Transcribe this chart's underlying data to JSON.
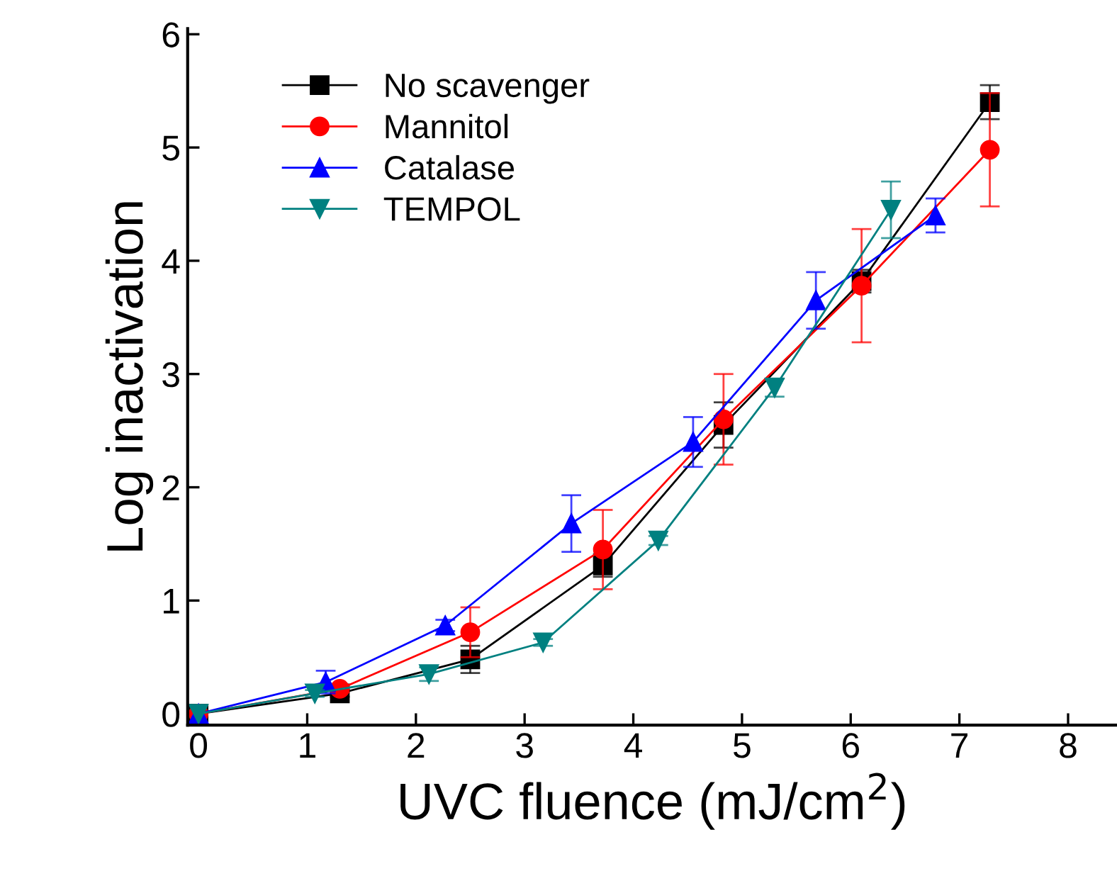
{
  "chart_data": {
    "type": "line",
    "xlabel": "UVC fluence (mJ/cm$^{2}$)",
    "ylabel": "Log inactivation",
    "xlim": [
      -0.1,
      8.45
    ],
    "ylim": [
      -0.1,
      6.05
    ],
    "xticks": [
      0,
      1,
      2,
      3,
      4,
      5,
      6,
      7,
      8
    ],
    "yticks": [
      0,
      1,
      2,
      3,
      4,
      5,
      6
    ],
    "grid": false,
    "legend": "top left",
    "line_style": "solid",
    "series": [
      {
        "name": "No scavenger",
        "color": "#000000",
        "marker": "square",
        "x": [
          0,
          1.3,
          2.5,
          3.72,
          4.83,
          6.1,
          7.28
        ],
        "values": [
          0,
          0.18,
          0.48,
          1.31,
          2.55,
          3.82,
          5.4
        ],
        "errors": [
          null,
          0.03,
          0.12,
          0.1,
          0.2,
          0.1,
          0.15
        ]
      },
      {
        "name": "Mannitol",
        "color": "#ff0000",
        "marker": "circle",
        "x": [
          0,
          1.3,
          2.5,
          3.72,
          4.83,
          6.1,
          7.28
        ],
        "values": [
          0,
          0.22,
          0.72,
          1.45,
          2.6,
          3.78,
          4.98
        ],
        "errors": [
          null,
          0.03,
          0.22,
          0.35,
          0.4,
          0.5,
          0.5
        ]
      },
      {
        "name": "Catalase",
        "color": "#0000ff",
        "marker": "triangle",
        "x": [
          0,
          1.17,
          2.27,
          3.43,
          4.55,
          5.68,
          6.78
        ],
        "values": [
          0,
          0.28,
          0.78,
          1.68,
          2.4,
          3.65,
          4.4
        ],
        "errors": [
          null,
          0.1,
          0.05,
          0.25,
          0.22,
          0.25,
          0.15
        ]
      },
      {
        "name": "TEMPOL",
        "color": "#008080",
        "marker": "triangle_down",
        "x": [
          0,
          1.07,
          2.12,
          3.17,
          4.23,
          5.3,
          6.37
        ],
        "values": [
          0,
          0.18,
          0.35,
          0.63,
          1.53,
          2.88,
          4.45
        ],
        "errors": [
          null,
          0.03,
          0.06,
          0.03,
          0.04,
          0.08,
          0.25
        ]
      }
    ]
  }
}
